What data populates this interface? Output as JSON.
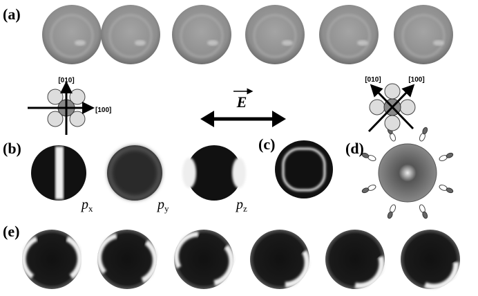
{
  "panels": [
    {
      "label": "(a)"
    },
    {
      "label": "(b)"
    },
    {
      "label": "(c)"
    },
    {
      "label": "(d)"
    },
    {
      "label": "(e)"
    }
  ],
  "crystal_left": {
    "axis_vertical": "[010]",
    "axis_horizontal": "[100]"
  },
  "crystal_right": {
    "axis_left": "[010]",
    "axis_right": "[100]"
  },
  "field": {
    "label": "E"
  },
  "orbitals": [
    {
      "symbol": "p",
      "subscript": "x"
    },
    {
      "symbol": "p",
      "subscript": "y"
    },
    {
      "symbol": "p",
      "subscript": "z"
    }
  ]
}
